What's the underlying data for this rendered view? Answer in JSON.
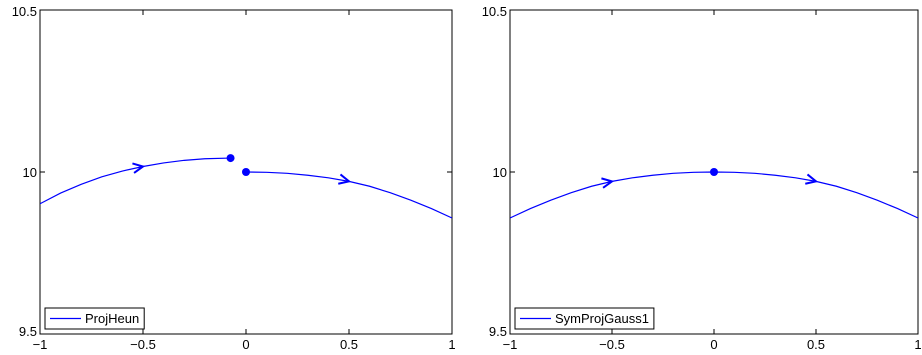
{
  "chart_data": [
    {
      "type": "line",
      "xlim": [
        -1,
        1
      ],
      "ylim": [
        9.5,
        10.5
      ],
      "x_ticks": [
        -1,
        -0.5,
        0,
        0.5,
        1
      ],
      "x_tick_labels": [
        "−1",
        "−0.5",
        "0",
        "0.5",
        "1"
      ],
      "y_ticks": [
        9.5,
        10,
        10.5
      ],
      "y_tick_labels": [
        "9.5",
        "10",
        "10.5"
      ],
      "grid": false,
      "legend_position": "bottom-left",
      "series": [
        {
          "name": "ProjHeun",
          "color": "#0000ff",
          "segments": [
            {
              "x": [
                -1,
                -0.9,
                -0.8,
                -0.7,
                -0.6,
                -0.5,
                -0.4,
                -0.3,
                -0.2,
                -0.075
              ],
              "y": [
                9.902,
                9.935,
                9.962,
                9.985,
                10.003,
                10.017,
                10.028,
                10.036,
                10.041,
                10.043
              ]
            },
            {
              "x": [
                0,
                0.1,
                0.2,
                0.3,
                0.4,
                0.5,
                0.6,
                0.7,
                0.8,
                0.9,
                1
              ],
              "y": [
                10.0,
                9.999,
                9.996,
                9.99,
                9.982,
                9.971,
                9.956,
                9.936,
                9.913,
                9.887,
                9.858
              ]
            }
          ],
          "markers": [
            {
              "x": -0.075,
              "y": 10.043
            },
            {
              "x": 0,
              "y": 10.0
            }
          ],
          "arrows": [
            {
              "x": -0.5,
              "y": 10.017
            },
            {
              "x": 0.5,
              "y": 9.971
            }
          ]
        }
      ]
    },
    {
      "type": "line",
      "xlim": [
        -1,
        1
      ],
      "ylim": [
        9.5,
        10.5
      ],
      "x_ticks": [
        -1,
        -0.5,
        0,
        0.5,
        1
      ],
      "x_tick_labels": [
        "−1",
        "−0.5",
        "0",
        "0.5",
        "1"
      ],
      "y_ticks": [
        9.5,
        10,
        10.5
      ],
      "y_tick_labels": [
        "9.5",
        "10",
        "10.5"
      ],
      "grid": false,
      "legend_position": "bottom-left",
      "series": [
        {
          "name": "SymProjGauss1",
          "color": "#0000ff",
          "segments": [
            {
              "x": [
                -1,
                -0.9,
                -0.8,
                -0.7,
                -0.6,
                -0.5,
                -0.4,
                -0.3,
                -0.2,
                -0.1,
                0,
                0.1,
                0.2,
                0.3,
                0.4,
                0.5,
                0.6,
                0.7,
                0.8,
                0.9,
                1
              ],
              "y": [
                9.858,
                9.887,
                9.913,
                9.936,
                9.956,
                9.971,
                9.982,
                9.99,
                9.996,
                9.999,
                10.0,
                9.999,
                9.996,
                9.99,
                9.982,
                9.971,
                9.956,
                9.936,
                9.913,
                9.887,
                9.858
              ]
            }
          ],
          "markers": [
            {
              "x": 0,
              "y": 10.0
            }
          ],
          "arrows": [
            {
              "x": -0.5,
              "y": 9.971
            },
            {
              "x": 0.5,
              "y": 9.971
            }
          ]
        }
      ]
    }
  ]
}
